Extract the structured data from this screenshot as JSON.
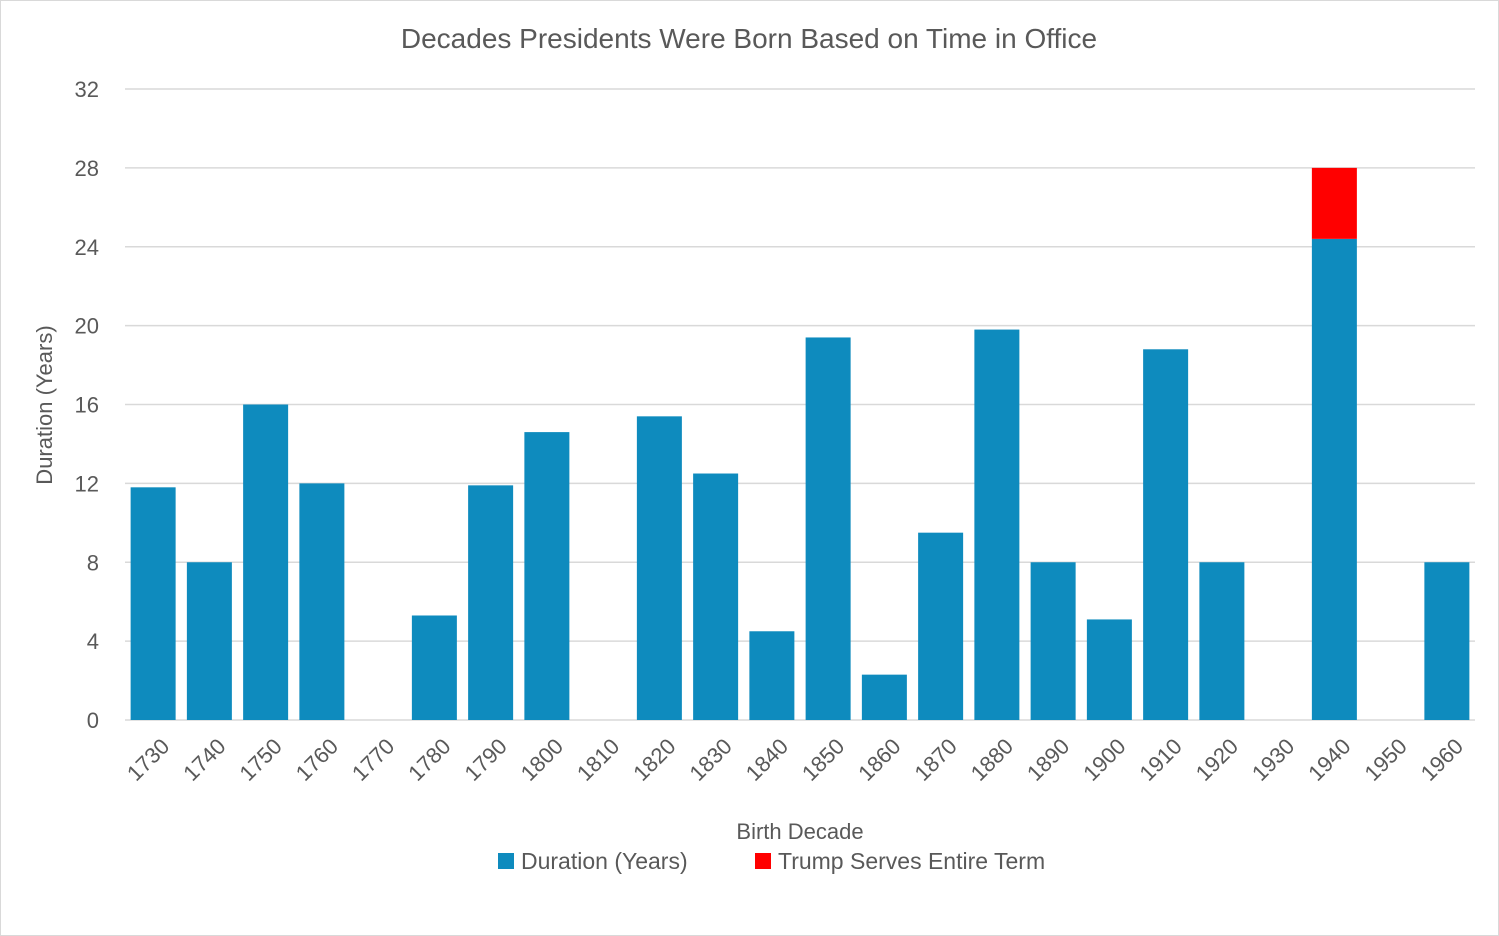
{
  "chart_data": {
    "type": "bar",
    "stacked": true,
    "title": "Decades Presidents Were Born Based on Time in Office",
    "xlabel": "Birth Decade",
    "ylabel": "Duration (Years)",
    "ylim": [
      0,
      32
    ],
    "yticks": [
      0,
      4,
      8,
      12,
      16,
      20,
      24,
      28,
      32
    ],
    "grid": true,
    "legend_position": "bottom",
    "categories": [
      "1730",
      "1740",
      "1750",
      "1760",
      "1770",
      "1780",
      "1790",
      "1800",
      "1810",
      "1820",
      "1830",
      "1840",
      "1850",
      "1860",
      "1870",
      "1880",
      "1890",
      "1900",
      "1910",
      "1920",
      "1930",
      "1940",
      "1950",
      "1960"
    ],
    "series": [
      {
        "name": "Duration (Years)",
        "color": "#0E8BBE",
        "values": [
          11.8,
          8,
          16,
          12,
          0,
          5.3,
          11.9,
          14.6,
          0,
          15.4,
          12.5,
          4.5,
          19.4,
          2.3,
          9.5,
          19.8,
          8,
          5.1,
          18.8,
          8,
          0,
          24.4,
          0,
          8
        ]
      },
      {
        "name": "Trump Serves Entire Term",
        "color": "#FF0000",
        "values": [
          0,
          0,
          0,
          0,
          0,
          0,
          0,
          0,
          0,
          0,
          0,
          0,
          0,
          0,
          0,
          0,
          0,
          0,
          0,
          0,
          0,
          3.6,
          0,
          0
        ]
      }
    ]
  }
}
